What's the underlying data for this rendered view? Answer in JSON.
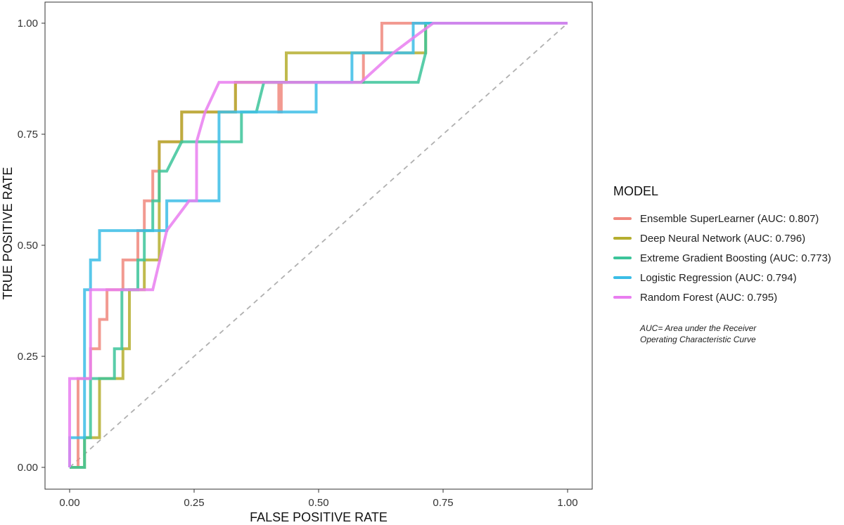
{
  "chart_data": {
    "type": "line",
    "xlabel": "FALSE POSITIVE RATE",
    "ylabel": "TRUE POSITIVE RATE",
    "xlim": [
      0,
      1
    ],
    "ylim": [
      0,
      1
    ],
    "x_ticks": [
      "0.00",
      "0.25",
      "0.50",
      "0.75",
      "1.00"
    ],
    "y_ticks": [
      "0.00",
      "0.25",
      "0.50",
      "0.75",
      "1.00"
    ],
    "grid": false,
    "legend": {
      "title": "MODEL",
      "placement": "right",
      "note_lines": [
        "AUC= Area under the Receiver",
        "Operating Characteristic Curve"
      ]
    },
    "reference_line": {
      "style": "dashed",
      "color": "#b0b0b0",
      "points": [
        [
          0,
          0
        ],
        [
          1,
          1
        ]
      ]
    },
    "series": [
      {
        "name": "Ensemble SuperLearner (AUC: 0.807)",
        "color": "#f0887e",
        "points": [
          [
            0,
            0
          ],
          [
            0.017,
            0
          ],
          [
            0.017,
            0.2
          ],
          [
            0.042,
            0.2
          ],
          [
            0.042,
            0.267
          ],
          [
            0.06,
            0.267
          ],
          [
            0.06,
            0.333
          ],
          [
            0.075,
            0.333
          ],
          [
            0.075,
            0.4
          ],
          [
            0.107,
            0.4
          ],
          [
            0.107,
            0.467
          ],
          [
            0.137,
            0.467
          ],
          [
            0.137,
            0.533
          ],
          [
            0.15,
            0.533
          ],
          [
            0.15,
            0.6
          ],
          [
            0.167,
            0.6
          ],
          [
            0.167,
            0.667
          ],
          [
            0.18,
            0.667
          ],
          [
            0.18,
            0.733
          ],
          [
            0.225,
            0.733
          ],
          [
            0.225,
            0.8
          ],
          [
            0.333,
            0.8
          ],
          [
            0.333,
            0.867
          ],
          [
            0.42,
            0.867
          ],
          [
            0.42,
            0.8
          ],
          [
            0.425,
            0.8
          ],
          [
            0.425,
            0.867
          ],
          [
            0.59,
            0.867
          ],
          [
            0.59,
            0.933
          ],
          [
            0.627,
            0.933
          ],
          [
            0.627,
            1
          ],
          [
            1,
            1
          ]
        ]
      },
      {
        "name": "Deep Neural Network (AUC: 0.796)",
        "color": "#b5ae2f",
        "points": [
          [
            0,
            0
          ],
          [
            0.03,
            0
          ],
          [
            0.03,
            0.067
          ],
          [
            0.06,
            0.067
          ],
          [
            0.06,
            0.2
          ],
          [
            0.107,
            0.2
          ],
          [
            0.107,
            0.267
          ],
          [
            0.12,
            0.267
          ],
          [
            0.12,
            0.4
          ],
          [
            0.15,
            0.4
          ],
          [
            0.15,
            0.467
          ],
          [
            0.18,
            0.467
          ],
          [
            0.18,
            0.733
          ],
          [
            0.225,
            0.733
          ],
          [
            0.225,
            0.8
          ],
          [
            0.333,
            0.8
          ],
          [
            0.333,
            0.867
          ],
          [
            0.435,
            0.867
          ],
          [
            0.435,
            0.933
          ],
          [
            0.715,
            0.933
          ],
          [
            0.715,
            1
          ],
          [
            1,
            1
          ]
        ]
      },
      {
        "name": "Extreme Gradient Boosting (AUC: 0.773)",
        "color": "#3cc49a",
        "points": [
          [
            0,
            0
          ],
          [
            0.03,
            0
          ],
          [
            0.03,
            0.067
          ],
          [
            0.042,
            0.067
          ],
          [
            0.042,
            0.2
          ],
          [
            0.09,
            0.2
          ],
          [
            0.09,
            0.267
          ],
          [
            0.105,
            0.267
          ],
          [
            0.105,
            0.4
          ],
          [
            0.137,
            0.4
          ],
          [
            0.137,
            0.467
          ],
          [
            0.15,
            0.467
          ],
          [
            0.15,
            0.533
          ],
          [
            0.167,
            0.533
          ],
          [
            0.167,
            0.6
          ],
          [
            0.18,
            0.6
          ],
          [
            0.18,
            0.667
          ],
          [
            0.195,
            0.667
          ],
          [
            0.225,
            0.733
          ],
          [
            0.345,
            0.733
          ],
          [
            0.345,
            0.8
          ],
          [
            0.375,
            0.8
          ],
          [
            0.39,
            0.867
          ],
          [
            0.7,
            0.867
          ],
          [
            0.715,
            0.933
          ],
          [
            0.715,
            1
          ],
          [
            1,
            1
          ]
        ]
      },
      {
        "name": "Logistic Regression (AUC: 0.794)",
        "color": "#3bbde6",
        "points": [
          [
            0,
            0
          ],
          [
            0,
            0.067
          ],
          [
            0.03,
            0.067
          ],
          [
            0.03,
            0.4
          ],
          [
            0.042,
            0.4
          ],
          [
            0.042,
            0.467
          ],
          [
            0.06,
            0.467
          ],
          [
            0.06,
            0.533
          ],
          [
            0.195,
            0.533
          ],
          [
            0.195,
            0.6
          ],
          [
            0.3,
            0.6
          ],
          [
            0.3,
            0.8
          ],
          [
            0.495,
            0.8
          ],
          [
            0.495,
            0.867
          ],
          [
            0.567,
            0.867
          ],
          [
            0.567,
            0.933
          ],
          [
            0.69,
            0.933
          ],
          [
            0.69,
            1
          ],
          [
            1,
            1
          ]
        ]
      },
      {
        "name": "Random Forest (AUC: 0.795)",
        "color": "#e97ef0",
        "points": [
          [
            0,
            0
          ],
          [
            0,
            0.2
          ],
          [
            0.042,
            0.2
          ],
          [
            0.042,
            0.4
          ],
          [
            0.167,
            0.4
          ],
          [
            0.195,
            0.533
          ],
          [
            0.24,
            0.6
          ],
          [
            0.255,
            0.6
          ],
          [
            0.255,
            0.733
          ],
          [
            0.272,
            0.8
          ],
          [
            0.3,
            0.867
          ],
          [
            0.585,
            0.867
          ],
          [
            0.65,
            0.933
          ],
          [
            0.69,
            0.967
          ],
          [
            0.73,
            1
          ],
          [
            1,
            1
          ]
        ]
      }
    ]
  }
}
